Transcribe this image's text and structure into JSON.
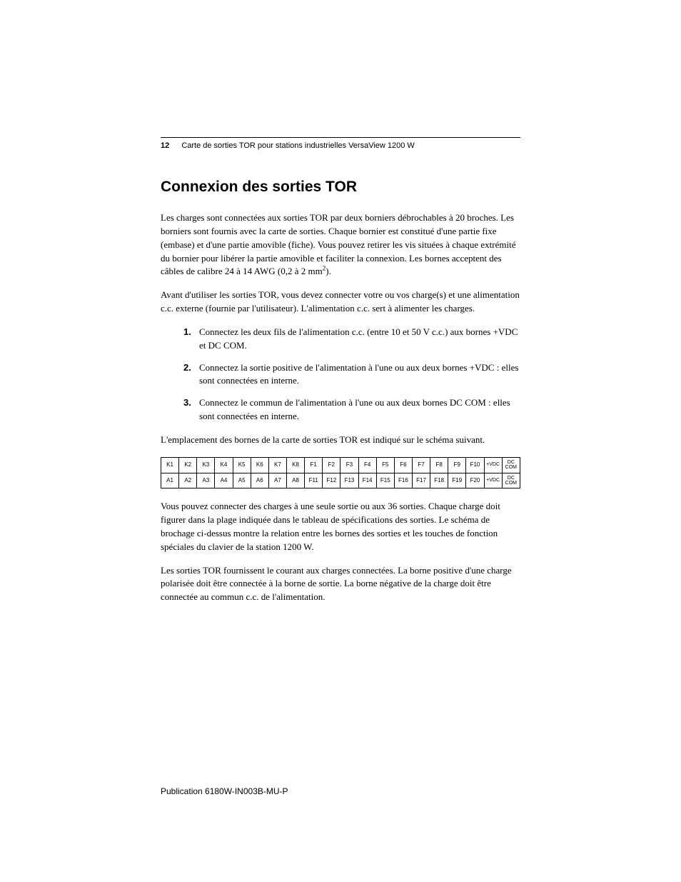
{
  "header": {
    "page_number": "12",
    "title": "Carte de sorties TOR pour stations industrielles VersaView 1200 W"
  },
  "section_title": "Connexion des sorties TOR",
  "para1": "Les charges sont connectées aux sorties TOR par deux borniers débrochables à 20 broches. Les borniers sont fournis avec la carte de sorties. Chaque bornier est constitué d'une partie fixe (embase) et d'une partie amovible (fiche). Vous pouvez retirer les vis situées à chaque extrémité du bornier pour libérer la partie amovible et faciliter la connexion. Les bornes acceptent des câbles de calibre 24 à 14 AWG (0,2 à 2 mm",
  "para1_sup": "2",
  "para1_tail": ").",
  "para2": "Avant d'utiliser les sorties TOR, vous devez connecter votre ou vos charge(s) et une alimentation c.c. externe (fournie par l'utilisateur). L'alimentation c.c. sert à alimenter les charges.",
  "steps": [
    "Connectez les deux fils de l'alimentation c.c. (entre 10 et 50 V c.c.) aux bornes +VDC et DC COM.",
    "Connectez la sortie positive de l'alimentation à l'une ou aux deux bornes +VDC : elles sont connectées en interne.",
    "Connectez le commun de l'alimentation à l'une ou aux deux bornes DC COM : elles sont connectées en interne."
  ],
  "para3": "L'emplacement des bornes de la carte de sorties TOR est indiqué sur le schéma suivant.",
  "terminal_table": {
    "type": "table",
    "rows": [
      [
        "K1",
        "K2",
        "K3",
        "K4",
        "K5",
        "K6",
        "K7",
        "K8",
        "F1",
        "F2",
        "F3",
        "F4",
        "F5",
        "F6",
        "F7",
        "F8",
        "F9",
        "F10",
        "+VDC",
        "DC COM"
      ],
      [
        "A1",
        "A2",
        "A3",
        "A4",
        "A5",
        "A6",
        "A7",
        "A8",
        "F11",
        "F12",
        "F13",
        "F14",
        "F15",
        "F16",
        "F17",
        "F18",
        "F19",
        "F20",
        "+VDC",
        "DC COM"
      ]
    ],
    "border_color": "#000000",
    "cell_fontsize": 8,
    "font_family": "Arial"
  },
  "para4": "Vous pouvez connecter des charges à une seule sortie ou aux 36 sorties. Chaque charge doit figurer dans la plage indiquée dans le tableau de spécifications des sorties. Le schéma de brochage ci-dessus montre la relation entre les bornes des sorties et les touches de fonction spéciales du clavier de la station 1200 W.",
  "para5": "Les sorties TOR fournissent le courant aux charges connectées. La borne positive d'une charge polarisée doit être connectée à la borne de sortie. La borne négative de la charge doit être connectée au commun c.c. de l'alimentation.",
  "publication": "Publication 6180W-IN003B-MU-P",
  "colors": {
    "text": "#000000",
    "background": "#ffffff",
    "rule": "#000000"
  },
  "fonts": {
    "heading": "Arial",
    "body": "Georgia"
  }
}
